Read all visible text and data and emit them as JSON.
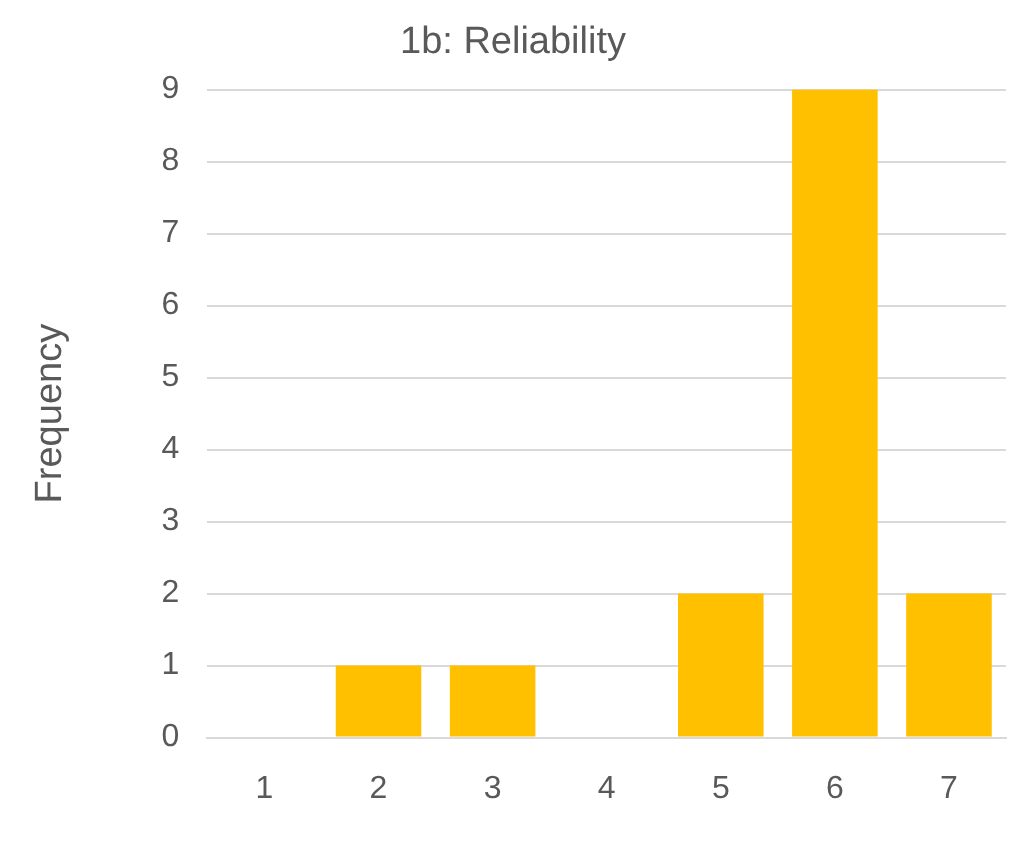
{
  "chart_data": {
    "type": "bar",
    "title": "1b: Reliability",
    "ylabel": "Frequency",
    "categories": [
      "1",
      "2",
      "3",
      "4",
      "5",
      "6",
      "7"
    ],
    "values": [
      0,
      1,
      1,
      0,
      2,
      9,
      2
    ],
    "color": "#ffc000",
    "ylim": [
      0,
      9
    ],
    "yticks": [
      0,
      1,
      2,
      3,
      4,
      5,
      6,
      7,
      8,
      9
    ],
    "grid": "y",
    "legend": false
  }
}
